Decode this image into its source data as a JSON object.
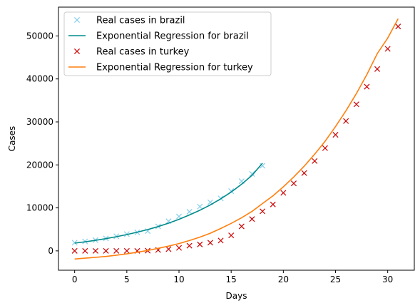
{
  "chart_data": {
    "type": "line",
    "title": "",
    "xlabel": "Days",
    "ylabel": "Cases",
    "xlim": [
      -1.55,
      32.55
    ],
    "ylim": [
      -4500,
      56700
    ],
    "xticks": [
      0,
      5,
      10,
      15,
      20,
      25,
      30
    ],
    "yticks": [
      0,
      10000,
      20000,
      30000,
      40000,
      50000
    ],
    "grid": false,
    "legend_position": "top-left",
    "series": [
      {
        "name": "Real cases in brazil",
        "kind": "markers",
        "marker": "x",
        "color": "#87ceeb",
        "x": [
          0,
          1,
          2,
          3,
          4,
          5,
          6,
          7,
          8,
          9,
          10,
          11,
          12,
          13,
          14,
          15,
          16,
          17,
          18
        ],
        "y": [
          1900,
          2200,
          2500,
          2900,
          3400,
          3900,
          4300,
          4600,
          5700,
          6900,
          8000,
          9100,
          10300,
          11300,
          12200,
          13900,
          16200,
          17900,
          19800
        ]
      },
      {
        "name": "Exponential Regression for brazil",
        "kind": "line",
        "color": "#008b8b",
        "x": [
          0,
          1,
          2,
          3,
          4,
          5,
          6,
          7,
          8,
          9,
          10,
          11,
          12,
          13,
          14,
          15,
          16,
          17,
          18
        ],
        "y": [
          1800,
          2100,
          2450,
          2850,
          3300,
          3800,
          4350,
          4950,
          5650,
          6450,
          7350,
          8350,
          9450,
          10700,
          12100,
          13700,
          15500,
          17600,
          20400
        ]
      },
      {
        "name": "Real cases in turkey",
        "kind": "markers",
        "marker": "x",
        "color": "#cc0000",
        "x": [
          0,
          1,
          2,
          3,
          4,
          5,
          6,
          7,
          8,
          9,
          10,
          11,
          12,
          13,
          14,
          15,
          16,
          17,
          18,
          19,
          20,
          21,
          22,
          23,
          24,
          25,
          26,
          27,
          28,
          29,
          30,
          31
        ],
        "y": [
          0,
          0,
          0,
          0,
          0,
          0,
          0,
          50,
          200,
          400,
          700,
          1200,
          1500,
          1900,
          2400,
          3600,
          5700,
          7400,
          9200,
          10800,
          13500,
          15700,
          18100,
          20900,
          23900,
          27000,
          30200,
          34100,
          38200,
          42300,
          47000,
          52200
        ]
      },
      {
        "name": "Exponential Regression for turkey",
        "kind": "line",
        "color": "#ff7f0e",
        "x": [
          0,
          1,
          2,
          3,
          4,
          5,
          6,
          7,
          8,
          9,
          10,
          11,
          12,
          13,
          14,
          15,
          16,
          17,
          18,
          19,
          20,
          21,
          22,
          23,
          24,
          25,
          26,
          27,
          28,
          29,
          30,
          31
        ],
        "y": [
          -1900,
          -1700,
          -1500,
          -1300,
          -1000,
          -700,
          -300,
          100,
          600,
          1100,
          1700,
          2400,
          3200,
          4100,
          5200,
          6400,
          7700,
          9200,
          11000,
          12800,
          14900,
          17200,
          19700,
          22500,
          25500,
          28900,
          32600,
          36600,
          41000,
          45900,
          49500,
          54000
        ]
      }
    ]
  }
}
